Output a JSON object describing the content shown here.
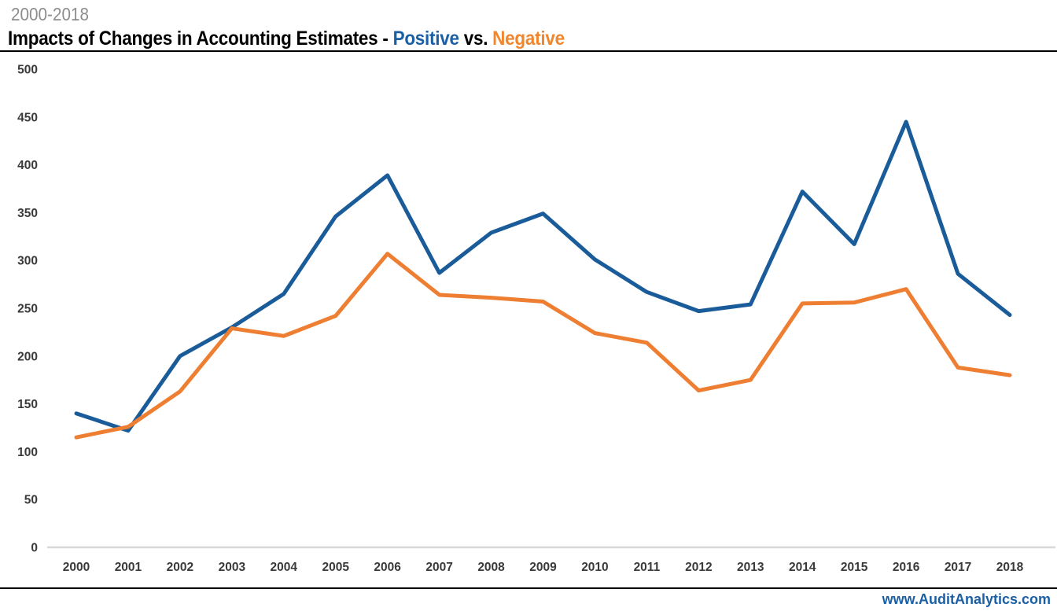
{
  "header": {
    "subtitle": "2000-2018",
    "title_prefix": "Impacts of Changes in Accounting Estimates - ",
    "title_positive": "Positive",
    "title_vs": " vs. ",
    "title_negative": "Negative"
  },
  "footer": {
    "website": "www.AuditAnalytics.com"
  },
  "colors": {
    "positive_line": "#1A5C99",
    "negative_line": "#EE7E31",
    "title_positive": "#1B5FA6",
    "title_negative": "#F0862D",
    "subtitle_gray": "#8C8C8C",
    "footer_blue": "#1B5FA6",
    "axis_line": "#D9D9D9",
    "tick_text": "#3A3A3A"
  },
  "chart_data": {
    "type": "line",
    "title": "Impacts of Changes in Accounting Estimates - Positive vs. Negative",
    "subtitle": "2000-2018",
    "x": [
      2000,
      2001,
      2002,
      2003,
      2004,
      2005,
      2006,
      2007,
      2008,
      2009,
      2010,
      2011,
      2012,
      2013,
      2014,
      2015,
      2016,
      2017,
      2018
    ],
    "series": [
      {
        "name": "Positive",
        "color_key": "positive_line",
        "values": [
          140,
          122,
          200,
          230,
          265,
          346,
          389,
          287,
          329,
          349,
          301,
          267,
          247,
          254,
          372,
          317,
          445,
          286,
          243
        ]
      },
      {
        "name": "Negative",
        "color_key": "negative_line",
        "values": [
          115,
          126,
          163,
          229,
          221,
          242,
          307,
          264,
          261,
          257,
          224,
          214,
          164,
          175,
          255,
          256,
          270,
          188,
          180
        ]
      }
    ],
    "ylim": [
      0,
      500
    ],
    "ytick_step": 50,
    "yticks": [
      0,
      50,
      100,
      150,
      200,
      250,
      300,
      350,
      400,
      450,
      500
    ],
    "grid": false,
    "legend": "inline-in-title",
    "xlabel": "",
    "ylabel": ""
  }
}
